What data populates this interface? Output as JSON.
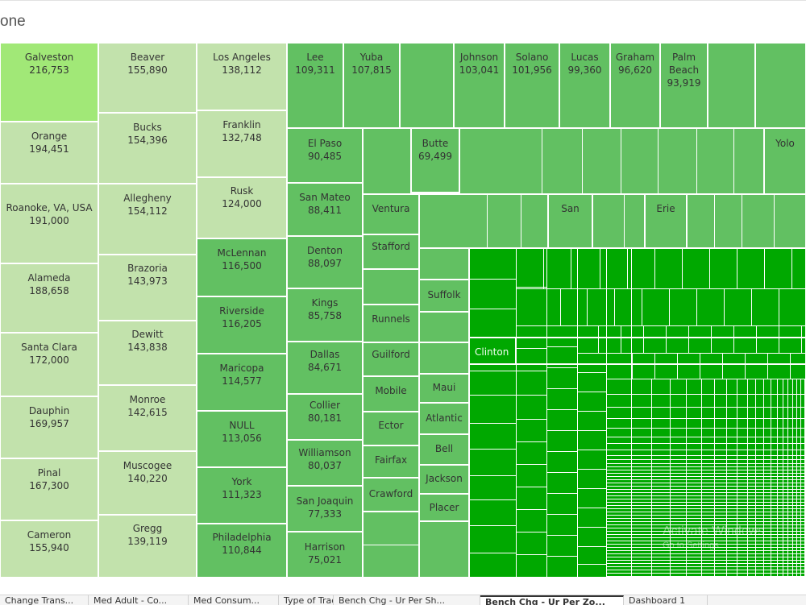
{
  "sheet_title": "one",
  "watermark": {
    "line1": "Activate Windows",
    "line2": "Go to Settings"
  },
  "colors": {
    "light": "#c2e2ac",
    "lightest": "#a1e877",
    "medium": "#62c062",
    "dark": "#00a800"
  },
  "tabs": [
    {
      "label": "Change Trans..."
    },
    {
      "label": "Med Adult - Co..."
    },
    {
      "label": "Med Consum..."
    },
    {
      "label": "Type of Trad..."
    },
    {
      "label": "Bench Chg - Ur Per Sh..."
    },
    {
      "label": "Bench Chg - Ur Per Zo...",
      "active": true
    },
    {
      "label": "Dashboard 1"
    }
  ],
  "chart_data": {
    "type": "treemap",
    "title": "one",
    "labeled_cells": [
      {
        "label": "Galveston",
        "value": 216753
      },
      {
        "label": "Orange",
        "value": 194451
      },
      {
        "label": "Roanoke, VA, USA",
        "value": 191000
      },
      {
        "label": "Alameda",
        "value": 188658
      },
      {
        "label": "Santa Clara",
        "value": 172000
      },
      {
        "label": "Dauphin",
        "value": 169957
      },
      {
        "label": "Pinal",
        "value": 167300
      },
      {
        "label": "Cameron",
        "value": 155940
      },
      {
        "label": "Beaver",
        "value": 155890
      },
      {
        "label": "Bucks",
        "value": 154396
      },
      {
        "label": "Allegheny",
        "value": 154112
      },
      {
        "label": "Brazoria",
        "value": 143973
      },
      {
        "label": "Dewitt",
        "value": 143838
      },
      {
        "label": "Monroe",
        "value": 142615
      },
      {
        "label": "Muscogee",
        "value": 140220
      },
      {
        "label": "Gregg",
        "value": 139119
      },
      {
        "label": "Los Angeles",
        "value": 138112
      },
      {
        "label": "Franklin",
        "value": 132748
      },
      {
        "label": "Rusk",
        "value": 124000
      },
      {
        "label": "McLennan",
        "value": 116500
      },
      {
        "label": "Riverside",
        "value": 116205
      },
      {
        "label": "Maricopa",
        "value": 114577
      },
      {
        "label": "NULL",
        "value": 113056
      },
      {
        "label": "York",
        "value": 111323
      },
      {
        "label": "Philadelphia",
        "value": 110844
      },
      {
        "label": "Lee",
        "value": 109311
      },
      {
        "label": "Yuba",
        "value": 107815
      },
      {
        "label": "Johnson",
        "value": 103041
      },
      {
        "label": "Solano",
        "value": 101956
      },
      {
        "label": "Lucas",
        "value": 99360
      },
      {
        "label": "Graham",
        "value": 96620
      },
      {
        "label": "Palm Beach",
        "value": 93919
      },
      {
        "label": "El Paso",
        "value": 90485
      },
      {
        "label": "Butte",
        "value": 69499
      },
      {
        "label": "Yolo",
        "value": null
      },
      {
        "label": "San Mateo",
        "value": 88411
      },
      {
        "label": "Ventura",
        "value": null
      },
      {
        "label": "San",
        "value": null
      },
      {
        "label": "Erie",
        "value": null
      },
      {
        "label": "Denton",
        "value": 88097
      },
      {
        "label": "Stafford",
        "value": null
      },
      {
        "label": "Kings",
        "value": 85758
      },
      {
        "label": "Runnels",
        "value": null
      },
      {
        "label": "Suffolk",
        "value": null
      },
      {
        "label": "Dallas",
        "value": 84671
      },
      {
        "label": "Guilford",
        "value": null
      },
      {
        "label": "Clinton",
        "value": null
      },
      {
        "label": "Mobile",
        "value": null
      },
      {
        "label": "Maui",
        "value": null
      },
      {
        "label": "Collier",
        "value": 80181
      },
      {
        "label": "Ector",
        "value": null
      },
      {
        "label": "Atlantic",
        "value": null
      },
      {
        "label": "Williamson",
        "value": 80037
      },
      {
        "label": "Fairfax",
        "value": null
      },
      {
        "label": "Bell",
        "value": null
      },
      {
        "label": "Jackson",
        "value": null
      },
      {
        "label": "San Joaquin",
        "value": 77333
      },
      {
        "label": "Crawford",
        "value": null
      },
      {
        "label": "Placer",
        "value": null
      },
      {
        "label": "Harrison",
        "value": 75021
      }
    ]
  }
}
